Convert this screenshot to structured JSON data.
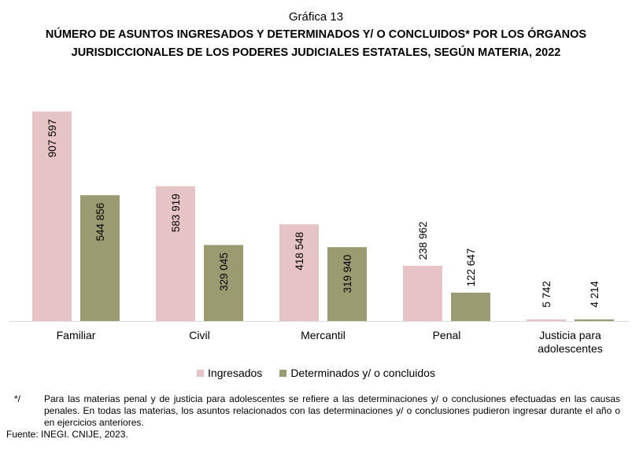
{
  "header": {
    "subtitle": "Gráfica 13",
    "title_line1": "NÚMERO DE ASUNTOS INGRESADOS Y DETERMINADOS Y/ O CONCLUIDOS* POR LOS ÓRGANOS",
    "title_line2": "JURISDICCIONALES DE LOS PODERES JUDICIALES ESTATALES, SEGÚN MATERIA, 2022"
  },
  "chart_data": {
    "type": "bar",
    "categories": [
      "Familiar",
      "Civil",
      "Mercantil",
      "Penal",
      "Justicia para adolescentes"
    ],
    "category_lines": [
      [
        "Familiar"
      ],
      [
        "Civil"
      ],
      [
        "Mercantil"
      ],
      [
        "Penal"
      ],
      [
        "Justicia para",
        "adolescentes"
      ]
    ],
    "series": [
      {
        "name": "Ingresados",
        "values": [
          907597,
          583919,
          418548,
          238962,
          5742
        ],
        "labels": [
          "907 597",
          "583 919",
          "418 548",
          "238 962",
          "5 742"
        ],
        "color": "#e6c3c4"
      },
      {
        "name": "Determinados y/ o concluidos",
        "values": [
          544856,
          329045,
          319940,
          122647,
          4214
        ],
        "labels": [
          "544 856",
          "329 045",
          "319 940",
          "122 647",
          "4 214"
        ],
        "color": "#9b9b72"
      }
    ],
    "ylim": [
      0,
      910000
    ],
    "grid": false,
    "legend": "bottom"
  },
  "note": {
    "mark": "*/",
    "text": "Para las materias penal y de justicia para adolescentes se refiere a las determinaciones y/ o conclusiones efectuadas en las causas penales. En todas las materias, los asuntos relacionados con las determinaciones y/ o conclusiones pudieron ingresar durante el año o en ejercicios anteriores."
  },
  "source": "Fuente: INEGI. CNIJE, 2023."
}
